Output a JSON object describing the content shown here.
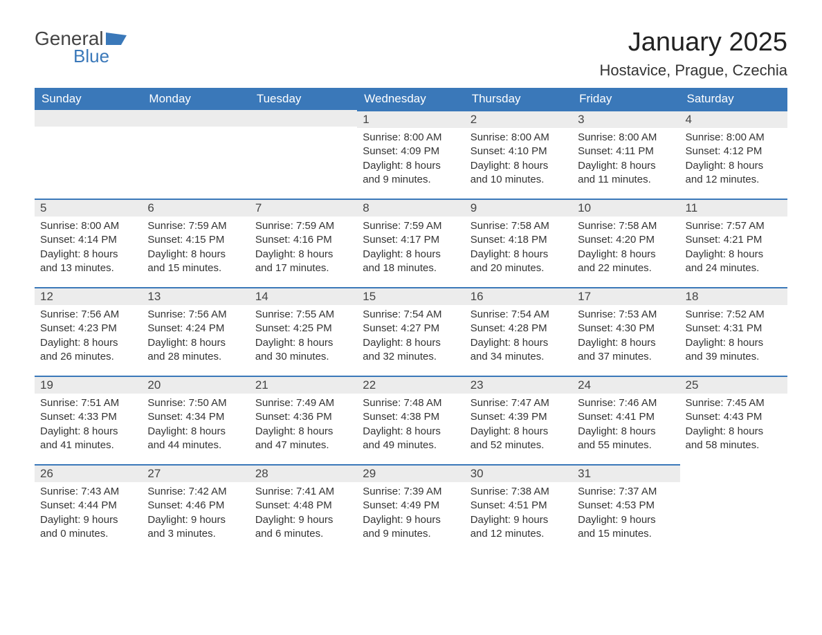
{
  "logo": {
    "text_general": "General",
    "text_blue": "Blue",
    "flag_color": "#3a78b9"
  },
  "title": "January 2025",
  "location": "Hostavice, Prague, Czechia",
  "colors": {
    "header_bg": "#3a78b9",
    "header_text": "#ffffff",
    "daynum_bg": "#ececec",
    "border_top": "#3a78b9",
    "body_text": "#333333"
  },
  "weekdays": [
    "Sunday",
    "Monday",
    "Tuesday",
    "Wednesday",
    "Thursday",
    "Friday",
    "Saturday"
  ],
  "weeks": [
    [
      null,
      null,
      null,
      {
        "n": "1",
        "sunrise": "8:00 AM",
        "sunset": "4:09 PM",
        "daylight": "8 hours and 9 minutes."
      },
      {
        "n": "2",
        "sunrise": "8:00 AM",
        "sunset": "4:10 PM",
        "daylight": "8 hours and 10 minutes."
      },
      {
        "n": "3",
        "sunrise": "8:00 AM",
        "sunset": "4:11 PM",
        "daylight": "8 hours and 11 minutes."
      },
      {
        "n": "4",
        "sunrise": "8:00 AM",
        "sunset": "4:12 PM",
        "daylight": "8 hours and 12 minutes."
      }
    ],
    [
      {
        "n": "5",
        "sunrise": "8:00 AM",
        "sunset": "4:14 PM",
        "daylight": "8 hours and 13 minutes."
      },
      {
        "n": "6",
        "sunrise": "7:59 AM",
        "sunset": "4:15 PM",
        "daylight": "8 hours and 15 minutes."
      },
      {
        "n": "7",
        "sunrise": "7:59 AM",
        "sunset": "4:16 PM",
        "daylight": "8 hours and 17 minutes."
      },
      {
        "n": "8",
        "sunrise": "7:59 AM",
        "sunset": "4:17 PM",
        "daylight": "8 hours and 18 minutes."
      },
      {
        "n": "9",
        "sunrise": "7:58 AM",
        "sunset": "4:18 PM",
        "daylight": "8 hours and 20 minutes."
      },
      {
        "n": "10",
        "sunrise": "7:58 AM",
        "sunset": "4:20 PM",
        "daylight": "8 hours and 22 minutes."
      },
      {
        "n": "11",
        "sunrise": "7:57 AM",
        "sunset": "4:21 PM",
        "daylight": "8 hours and 24 minutes."
      }
    ],
    [
      {
        "n": "12",
        "sunrise": "7:56 AM",
        "sunset": "4:23 PM",
        "daylight": "8 hours and 26 minutes."
      },
      {
        "n": "13",
        "sunrise": "7:56 AM",
        "sunset": "4:24 PM",
        "daylight": "8 hours and 28 minutes."
      },
      {
        "n": "14",
        "sunrise": "7:55 AM",
        "sunset": "4:25 PM",
        "daylight": "8 hours and 30 minutes."
      },
      {
        "n": "15",
        "sunrise": "7:54 AM",
        "sunset": "4:27 PM",
        "daylight": "8 hours and 32 minutes."
      },
      {
        "n": "16",
        "sunrise": "7:54 AM",
        "sunset": "4:28 PM",
        "daylight": "8 hours and 34 minutes."
      },
      {
        "n": "17",
        "sunrise": "7:53 AM",
        "sunset": "4:30 PM",
        "daylight": "8 hours and 37 minutes."
      },
      {
        "n": "18",
        "sunrise": "7:52 AM",
        "sunset": "4:31 PM",
        "daylight": "8 hours and 39 minutes."
      }
    ],
    [
      {
        "n": "19",
        "sunrise": "7:51 AM",
        "sunset": "4:33 PM",
        "daylight": "8 hours and 41 minutes."
      },
      {
        "n": "20",
        "sunrise": "7:50 AM",
        "sunset": "4:34 PM",
        "daylight": "8 hours and 44 minutes."
      },
      {
        "n": "21",
        "sunrise": "7:49 AM",
        "sunset": "4:36 PM",
        "daylight": "8 hours and 47 minutes."
      },
      {
        "n": "22",
        "sunrise": "7:48 AM",
        "sunset": "4:38 PM",
        "daylight": "8 hours and 49 minutes."
      },
      {
        "n": "23",
        "sunrise": "7:47 AM",
        "sunset": "4:39 PM",
        "daylight": "8 hours and 52 minutes."
      },
      {
        "n": "24",
        "sunrise": "7:46 AM",
        "sunset": "4:41 PM",
        "daylight": "8 hours and 55 minutes."
      },
      {
        "n": "25",
        "sunrise": "7:45 AM",
        "sunset": "4:43 PM",
        "daylight": "8 hours and 58 minutes."
      }
    ],
    [
      {
        "n": "26",
        "sunrise": "7:43 AM",
        "sunset": "4:44 PM",
        "daylight": "9 hours and 0 minutes."
      },
      {
        "n": "27",
        "sunrise": "7:42 AM",
        "sunset": "4:46 PM",
        "daylight": "9 hours and 3 minutes."
      },
      {
        "n": "28",
        "sunrise": "7:41 AM",
        "sunset": "4:48 PM",
        "daylight": "9 hours and 6 minutes."
      },
      {
        "n": "29",
        "sunrise": "7:39 AM",
        "sunset": "4:49 PM",
        "daylight": "9 hours and 9 minutes."
      },
      {
        "n": "30",
        "sunrise": "7:38 AM",
        "sunset": "4:51 PM",
        "daylight": "9 hours and 12 minutes."
      },
      {
        "n": "31",
        "sunrise": "7:37 AM",
        "sunset": "4:53 PM",
        "daylight": "9 hours and 15 minutes."
      },
      null
    ]
  ],
  "labels": {
    "sunrise": "Sunrise: ",
    "sunset": "Sunset: ",
    "daylight": "Daylight: "
  }
}
